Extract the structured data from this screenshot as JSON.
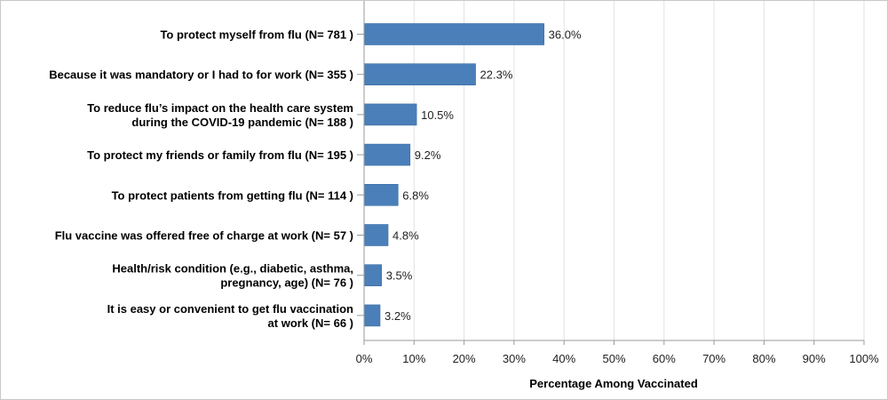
{
  "chart_data": {
    "type": "bar",
    "orientation": "horizontal",
    "categories": [
      [
        "To protect myself from flu (N= 781 )"
      ],
      [
        "Because it was mandatory or I had to for work (N= 355 )"
      ],
      [
        "To reduce flu’s impact on the health care system",
        "during the COVID-19 pandemic (N= 188 )"
      ],
      [
        "To protect my friends or family from flu (N= 195 )"
      ],
      [
        "To protect patients from getting flu (N= 114 )"
      ],
      [
        "Flu vaccine was offered free of charge at work (N= 57 )"
      ],
      [
        "Health/risk condition  (e.g., diabetic, asthma,",
        "pregnancy, age) (N= 76 )"
      ],
      [
        "It is easy or convenient to get flu vaccination",
        "at work (N= 66 )"
      ]
    ],
    "values": [
      36.0,
      22.3,
      10.5,
      9.2,
      6.8,
      4.8,
      3.5,
      3.2
    ],
    "data_labels": [
      "36.0%",
      "22.3%",
      "10.5%",
      "9.2%",
      "6.8%",
      "4.8%",
      "3.5%",
      "3.2%"
    ],
    "xlabel": "Percentage Among Vaccinated",
    "ylabel": "",
    "xlim": [
      0,
      100
    ],
    "xticks": [
      "0%",
      "10%",
      "20%",
      "30%",
      "40%",
      "50%",
      "60%",
      "70%",
      "80%",
      "90%",
      "100%"
    ],
    "grid": "vertical",
    "legend": "none",
    "bar_color": "#4a7fb9"
  }
}
